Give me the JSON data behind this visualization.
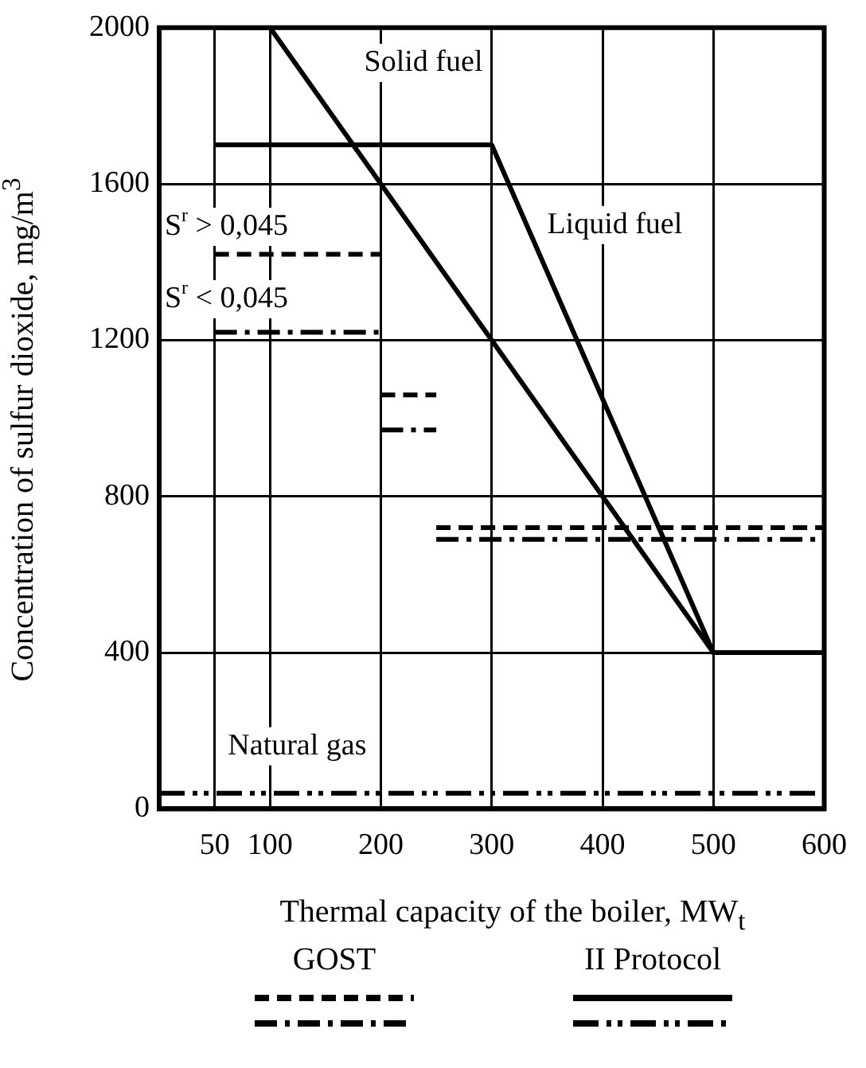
{
  "chart_data": {
    "type": "line",
    "xlabel": "Thermal capacity of the boiler, MW$_{t}$",
    "ylabel": "Concentration of sulfur dioxide, mg/m$^{3}$",
    "xlim": [
      0,
      600
    ],
    "xticks": [
      50,
      100,
      200,
      300,
      400,
      500,
      600
    ],
    "ylim": [
      0,
      2000
    ],
    "yticks": [
      0,
      400,
      800,
      1200,
      1600,
      2000
    ],
    "grid": true,
    "legend": false,
    "marker": "none",
    "series": [
      {
        "color": "#000000",
        "line_style": "solid",
        "x": [
          50,
          100,
          500,
          600
        ],
        "values": [
          2000,
          2000,
          400,
          400
        ]
      },
      {
        "color": "#000000",
        "line_style": "solid",
        "x": [
          50,
          300,
          500,
          600
        ],
        "values": [
          1700,
          1700,
          400,
          400
        ]
      },
      {
        "color": "#000000",
        "line_style": "dashed",
        "x": [
          50,
          200
        ],
        "values": [
          1420,
          1420
        ]
      },
      {
        "color": "#000000",
        "line_style": "dashed",
        "x": [
          200,
          250
        ],
        "values": [
          1060,
          1060
        ]
      },
      {
        "color": "#000000",
        "line_style": "dashed",
        "x": [
          250,
          600
        ],
        "values": [
          720,
          720
        ]
      },
      {
        "color": "#000000",
        "line_style": "dashdot",
        "x": [
          50,
          200
        ],
        "values": [
          1220,
          1220
        ]
      },
      {
        "color": "#000000",
        "line_style": "dashdot",
        "x": [
          200,
          250
        ],
        "values": [
          970,
          970
        ]
      },
      {
        "color": "#000000",
        "line_style": "dashdot",
        "x": [
          250,
          600
        ],
        "values": [
          690,
          690
        ]
      },
      {
        "color": "#000000",
        "line_style": "dashdotdot",
        "x": [
          0,
          600
        ],
        "values": [
          40,
          40
        ]
      }
    ],
    "annotations": [
      "Solid fuel",
      "Liquid fuel",
      "Natural gas",
      "S$^{r}$ > 0,045",
      "S$^{r}$ < 0,045",
      "GOST",
      "II Protocol"
    ]
  }
}
